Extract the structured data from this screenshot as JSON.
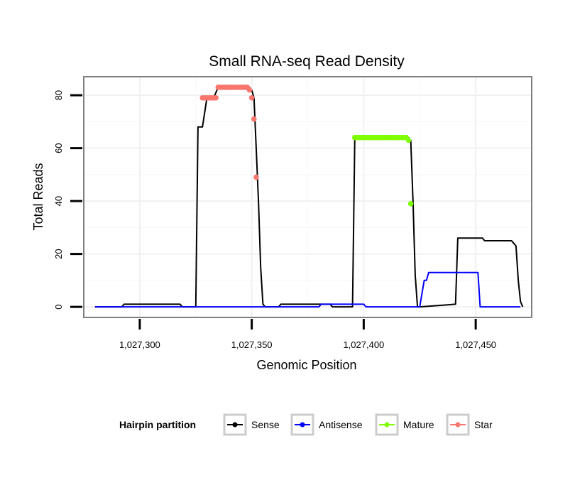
{
  "chart_data": {
    "type": "line",
    "title": "Small RNA-seq Read Density",
    "xlabel": "Genomic Position",
    "ylabel": "Total Reads",
    "xlim": [
      1027275,
      1027475
    ],
    "ylim": [
      -4,
      87
    ],
    "x_ticks": [
      1027300,
      1027350,
      1027400,
      1027450
    ],
    "x_tick_labels": [
      "1,027,300",
      "1,027,350",
      "1,027,400",
      "1,027,450"
    ],
    "y_ticks": [
      0,
      20,
      40,
      60,
      80
    ],
    "y_tick_labels": [
      "0",
      "20",
      "40",
      "60",
      "80"
    ],
    "grid": true,
    "legend": {
      "title": "Hairpin partition",
      "position": "bottom",
      "entries": [
        "Sense",
        "Antisense",
        "Mature",
        "Star"
      ]
    },
    "series": [
      {
        "name": "Sense",
        "color": "#000000",
        "mode": "line",
        "x": [
          1027280,
          1027292,
          1027293,
          1027318,
          1027319,
          1027325,
          1027326,
          1027327,
          1027328,
          1027330,
          1027333,
          1027335,
          1027349,
          1027350,
          1027351,
          1027352,
          1027353,
          1027354,
          1027355,
          1027356,
          1027362,
          1027363,
          1027381,
          1027382,
          1027385,
          1027386,
          1027395,
          1027396,
          1027420,
          1027421,
          1027422,
          1027423,
          1027424,
          1027425,
          1027441,
          1027442,
          1027453,
          1027454,
          1027466,
          1027467,
          1027468,
          1027469,
          1027470,
          1027471
        ],
        "y": [
          0,
          0,
          1,
          1,
          0,
          0,
          68,
          68,
          68,
          79,
          79,
          83,
          83,
          82,
          79,
          60,
          40,
          15,
          1,
          0,
          0,
          1,
          1,
          1,
          1,
          0,
          0,
          64,
          64,
          63,
          40,
          12,
          0,
          0,
          1,
          26,
          26,
          25,
          25,
          24,
          23,
          10,
          2,
          0
        ]
      },
      {
        "name": "Antisense",
        "color": "#0000ff",
        "mode": "line",
        "x": [
          1027280,
          1027380,
          1027381,
          1027389,
          1027390,
          1027400,
          1027401,
          1027406,
          1027407,
          1027421,
          1027422,
          1027425,
          1027426,
          1027427,
          1027428,
          1027429,
          1027430,
          1027451,
          1027452,
          1027470
        ],
        "y": [
          0,
          0,
          1,
          1,
          1,
          1,
          0,
          0,
          0,
          0,
          0,
          0,
          5,
          10,
          10,
          13,
          13,
          13,
          0,
          0
        ]
      },
      {
        "name": "Mature",
        "color": "#7fff00",
        "mode": "points",
        "x": [
          1027396,
          1027397,
          1027398,
          1027399,
          1027400,
          1027401,
          1027402,
          1027403,
          1027404,
          1027405,
          1027406,
          1027407,
          1027408,
          1027409,
          1027410,
          1027411,
          1027412,
          1027413,
          1027414,
          1027415,
          1027416,
          1027417,
          1027418,
          1027419,
          1027420,
          1027421
        ],
        "y": [
          64,
          64,
          64,
          64,
          64,
          64,
          64,
          64,
          64,
          64,
          64,
          64,
          64,
          64,
          64,
          64,
          64,
          64,
          64,
          64,
          64,
          64,
          64,
          64,
          63,
          39
        ]
      },
      {
        "name": "Star",
        "color": "#f8766d",
        "mode": "points",
        "x": [
          1027328,
          1027329,
          1027330,
          1027331,
          1027332,
          1027333,
          1027334,
          1027335,
          1027336,
          1027337,
          1027338,
          1027339,
          1027340,
          1027341,
          1027342,
          1027343,
          1027344,
          1027345,
          1027346,
          1027347,
          1027348,
          1027349,
          1027350,
          1027351,
          1027352
        ],
        "y": [
          79,
          79,
          79,
          79,
          79,
          79,
          79,
          83,
          83,
          83,
          83,
          83,
          83,
          83,
          83,
          83,
          83,
          83,
          83,
          83,
          83,
          82,
          79,
          71,
          49
        ]
      }
    ]
  }
}
